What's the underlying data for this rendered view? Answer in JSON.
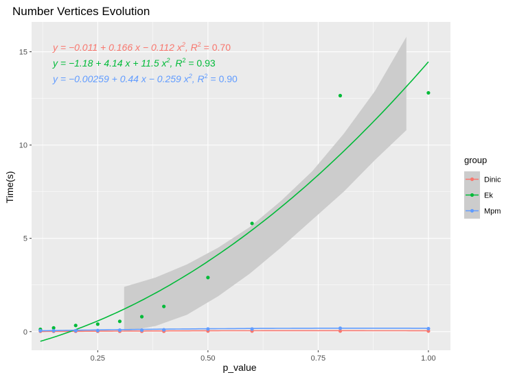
{
  "chart_data": {
    "type": "scatter",
    "title": "Number Vertices Evolution",
    "xlabel": "p_value",
    "ylabel": "Time(s)",
    "xlim": [
      0.1,
      1.05
    ],
    "ylim": [
      -1.0,
      16.6
    ],
    "xticks": [
      {
        "v": 0.25,
        "label": "0.25"
      },
      {
        "v": 0.5,
        "label": "0.50"
      },
      {
        "v": 0.75,
        "label": "0.75"
      },
      {
        "v": 1.0,
        "label": "1.00"
      }
    ],
    "yticks": [
      {
        "v": 0,
        "label": "0"
      },
      {
        "v": 5,
        "label": "5"
      },
      {
        "v": 10,
        "label": "10"
      },
      {
        "v": 15,
        "label": "15"
      }
    ],
    "grid": true,
    "legend": {
      "title": "group",
      "placement": "right",
      "entries": [
        "Dinic",
        "Ek",
        "Mpm"
      ]
    },
    "series": [
      {
        "name": "Dinic",
        "color": "#f8766d",
        "x": [
          0.12,
          0.15,
          0.2,
          0.25,
          0.3,
          0.35,
          0.4,
          0.5,
          0.6,
          0.8,
          1.0
        ],
        "y": [
          0.02,
          0.02,
          0.02,
          0.02,
          0.02,
          0.02,
          0.02,
          0.03,
          0.03,
          0.03,
          0.03
        ],
        "fit": {
          "a": -0.011,
          "b": 0.166,
          "c": -0.112
        },
        "equation": {
          "lhs": "y",
          "rhs": "−0.011 + 0.166 x − 0.112 x",
          "r2_label": "R",
          "r2_value": "= 0.70"
        }
      },
      {
        "name": "Ek",
        "color": "#00ba38",
        "x": [
          0.12,
          0.15,
          0.2,
          0.25,
          0.3,
          0.35,
          0.4,
          0.5,
          0.6,
          0.8,
          1.0
        ],
        "y": [
          0.12,
          0.2,
          0.33,
          0.4,
          0.55,
          0.8,
          1.35,
          2.9,
          5.8,
          12.65,
          12.8
        ],
        "fit": {
          "a": -1.18,
          "b": 4.14,
          "c": 11.5
        },
        "equation": {
          "lhs": "y",
          "rhs": "−1.18 + 4.14 x + 11.5 x",
          "r2_label": "R",
          "r2_value": "= 0.93"
        }
      },
      {
        "name": "Mpm",
        "color": "#619cff",
        "x": [
          0.12,
          0.15,
          0.2,
          0.25,
          0.3,
          0.35,
          0.4,
          0.5,
          0.6,
          0.8,
          1.0
        ],
        "y": [
          0.05,
          0.05,
          0.05,
          0.06,
          0.08,
          0.08,
          0.1,
          0.14,
          0.14,
          0.18,
          0.16
        ],
        "fit": {
          "a": -0.00259,
          "b": 0.44,
          "c": -0.259
        },
        "equation": {
          "lhs": "y",
          "rhs": "−0.00259 + 0.44 x − 0.259 x",
          "r2_label": "R",
          "r2_value": "= 0.90"
        }
      }
    ],
    "confidence_band": {
      "series": "Ek",
      "x_range": [
        0.31,
        0.95
      ],
      "lower": [
        0.0,
        0.3,
        0.9,
        1.9,
        3.1,
        4.5,
        6.0,
        7.5,
        9.2,
        10.8
      ],
      "upper": [
        2.4,
        2.9,
        3.6,
        4.5,
        5.6,
        7.0,
        8.6,
        10.6,
        12.9,
        15.8
      ]
    },
    "band_color": "#cccccc",
    "panel_color": "#ebebeb",
    "grid_color": "#ffffff"
  }
}
